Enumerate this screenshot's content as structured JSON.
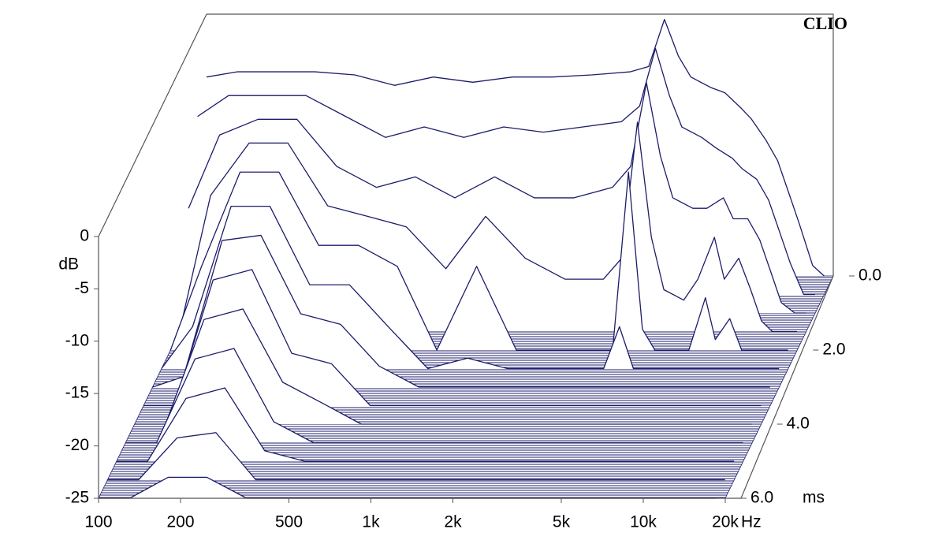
{
  "chart_data": {
    "type": "waterfall",
    "watermark": "CLIO",
    "x_label": "Hz",
    "y_label": "dB",
    "z_label": "ms",
    "color": "#1c1c6b",
    "x_scale": "log",
    "xlim": [
      100,
      20000
    ],
    "xticks": [
      100,
      200,
      500,
      {
        "value": 1000,
        "label": "1k"
      },
      {
        "value": 2000,
        "label": "2k"
      },
      {
        "value": 5000,
        "label": "5k"
      },
      {
        "value": 10000,
        "label": "10k"
      },
      {
        "value": 20000,
        "label": "20k"
      }
    ],
    "ylim": [
      -25,
      0
    ],
    "yticks": [
      0,
      -5,
      -10,
      -15,
      -20,
      -25
    ],
    "zlim": [
      0,
      6
    ],
    "zticks": [
      {
        "value": 0,
        "label": "0.0"
      },
      {
        "value": 2,
        "label": "2.0"
      },
      {
        "value": 4,
        "label": "4.0"
      },
      {
        "value": 6,
        "label": "6.0"
      }
    ],
    "x": [
      100,
      130,
      180,
      250,
      350,
      490,
      680,
      950,
      1330,
      1860,
      2600,
      3600,
      4200,
      4800,
      5400,
      6000,
      7100,
      8000,
      9200,
      10000,
      11300,
      12500,
      13700,
      15000,
      16800,
      18500
    ],
    "series": [
      {
        "t": 0,
        "values": [
          -6,
          -5.5,
          -5.5,
          -5.5,
          -5.8,
          -6.8,
          -6,
          -6.5,
          -6,
          -6,
          -5.8,
          -5.5,
          -5,
          -0.5,
          -4,
          -6,
          -7,
          -7.5,
          -9,
          -10,
          -12,
          -14,
          -17,
          -20,
          -24,
          -25
        ]
      },
      {
        "t": 0.5,
        "values": [
          -8,
          -6,
          -6,
          -6,
          -8,
          -10,
          -9,
          -10,
          -9,
          -9.5,
          -9,
          -8.5,
          -7,
          -1.5,
          -6,
          -9,
          -10,
          -11,
          -12,
          -13,
          -14,
          -16,
          -19,
          -22,
          -25,
          -25
        ]
      },
      {
        "t": 1,
        "values": [
          -15,
          -8,
          -6.5,
          -6.5,
          -11,
          -13,
          -12,
          -14,
          -12,
          -14,
          -14,
          -13,
          -11,
          -3,
          -10,
          -14,
          -15,
          -15,
          -14,
          -16,
          -16,
          -18,
          -21,
          -24,
          -25,
          -25
        ]
      },
      {
        "t": 1.5,
        "values": [
          -25,
          -12,
          -7,
          -7,
          -13,
          -14,
          -15,
          -19,
          -14,
          -18,
          -20,
          -20,
          -18,
          -5,
          -16,
          -21,
          -22,
          -20,
          -16,
          -20,
          -18,
          -21,
          -24,
          -25,
          -25,
          -25
        ]
      },
      {
        "t": 2,
        "values": [
          -25,
          -17,
          -8,
          -8,
          -15,
          -15,
          -17,
          -25,
          -17,
          -25,
          -25,
          -25,
          -25,
          -8,
          -23,
          -25,
          -25,
          -25,
          -20,
          -24,
          -22,
          -25,
          -25,
          -25,
          -25,
          -25
        ]
      },
      {
        "t": 2.5,
        "values": [
          -25,
          -21,
          -9.5,
          -9.5,
          -17,
          -17,
          -21,
          -25,
          -24,
          -25,
          -25,
          -25,
          -25,
          -21,
          -25,
          -25,
          -25,
          -25,
          -25,
          -25,
          -25,
          -25,
          -25,
          -25,
          -25,
          -25
        ]
      },
      {
        "t": 3,
        "values": [
          -25,
          -24,
          -11,
          -10.5,
          -18,
          -19,
          -23,
          -25,
          -25,
          -25,
          -25,
          -25,
          -25,
          -25,
          -25,
          -25,
          -25,
          -25,
          -25,
          -25,
          -25,
          -25,
          -25,
          -25,
          -25,
          -25
        ]
      },
      {
        "t": 3.5,
        "values": [
          -25,
          -25,
          -13,
          -12,
          -20,
          -21,
          -25,
          -25,
          -25,
          -25,
          -25,
          -25,
          -25,
          -25,
          -25,
          -25,
          -25,
          -25,
          -25,
          -25,
          -25,
          -25,
          -25,
          -25,
          -25,
          -25
        ]
      },
      {
        "t": 4,
        "values": [
          -25,
          -25,
          -15,
          -14,
          -21,
          -23,
          -25,
          -25,
          -25,
          -25,
          -25,
          -25,
          -25,
          -25,
          -25,
          -25,
          -25,
          -25,
          -25,
          -25,
          -25,
          -25,
          -25,
          -25,
          -25,
          -25
        ]
      },
      {
        "t": 4.5,
        "values": [
          -25,
          -25,
          -17,
          -16,
          -23,
          -25,
          -25,
          -25,
          -25,
          -25,
          -25,
          -25,
          -25,
          -25,
          -25,
          -25,
          -25,
          -25,
          -25,
          -25,
          -25,
          -25,
          -25,
          -25,
          -25,
          -25
        ]
      },
      {
        "t": 5,
        "values": [
          -25,
          -25,
          -19,
          -18,
          -24,
          -25,
          -25,
          -25,
          -25,
          -25,
          -25,
          -25,
          -25,
          -25,
          -25,
          -25,
          -25,
          -25,
          -25,
          -25,
          -25,
          -25,
          -25,
          -25,
          -25,
          -25
        ]
      },
      {
        "t": 5.5,
        "values": [
          -25,
          -25,
          -21,
          -20.5,
          -25,
          -25,
          -25,
          -25,
          -25,
          -25,
          -25,
          -25,
          -25,
          -25,
          -25,
          -25,
          -25,
          -25,
          -25,
          -25,
          -25,
          -25,
          -25,
          -25,
          -25,
          -25
        ]
      },
      {
        "t": 6,
        "values": [
          -25,
          -25,
          -23,
          -23,
          -25,
          -25,
          -25,
          -25,
          -25,
          -25,
          -25,
          -25,
          -25,
          -25,
          -25,
          -25,
          -25,
          -25,
          -25,
          -25,
          -25,
          -25,
          -25,
          -25,
          -25,
          -25
        ]
      }
    ]
  }
}
